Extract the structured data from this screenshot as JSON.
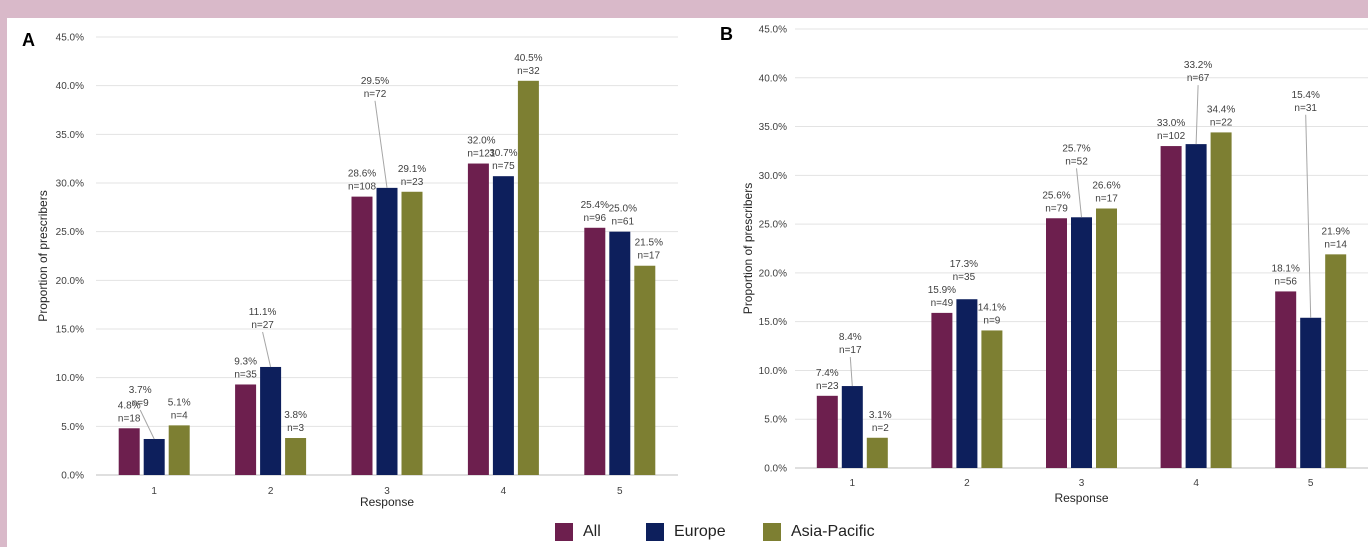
{
  "colors": {
    "All": "#6d1f4e",
    "Europe": "#0d1f5c",
    "Asia-Pacific": "#7d7f32"
  },
  "legend": {
    "all": "All",
    "europe": "Europe",
    "asia_pacific": "Asia-Pacific"
  },
  "chart_data": [
    {
      "type": "bar",
      "panel_label": "A",
      "xlabel": "Response",
      "ylabel": "Proportion of prescribers",
      "ylim": [
        0,
        45
      ],
      "yticks": [
        "0.0%",
        "5.0%",
        "10.0%",
        "15.0%",
        "20.0%",
        "25.0%",
        "30.0%",
        "35.0%",
        "40.0%",
        "45.0%"
      ],
      "grid": true,
      "categories": [
        "1",
        "2",
        "3",
        "4",
        "5"
      ],
      "series": [
        {
          "name": "All",
          "values": [
            4.8,
            9.3,
            28.6,
            32.0,
            25.4
          ],
          "labels": [
            "4.8%",
            "9.3%",
            "28.6%",
            "32.0%",
            "25.4%"
          ],
          "counts": [
            "n=18",
            "n=35",
            "n=108",
            "n=121",
            "n=96"
          ]
        },
        {
          "name": "Europe",
          "values": [
            3.7,
            11.1,
            29.5,
            30.7,
            25.0
          ],
          "labels": [
            "3.7%",
            "11.1%",
            "29.5%",
            "30.7%",
            "25.0%"
          ],
          "counts": [
            "n=9",
            "n=27",
            "n=72",
            "n=75",
            "n=61"
          ]
        },
        {
          "name": "Asia-Pacific",
          "values": [
            5.1,
            3.8,
            29.1,
            40.5,
            21.5
          ],
          "labels": [
            "5.1%",
            "3.8%",
            "29.1%",
            "40.5%",
            "21.5%"
          ],
          "counts": [
            "n=4",
            "n=3",
            "n=23",
            "n=32",
            "n=17"
          ]
        }
      ]
    },
    {
      "type": "bar",
      "panel_label": "B",
      "xlabel": "Response",
      "ylabel": "Proportion of prescribers",
      "ylim": [
        0,
        45
      ],
      "yticks": [
        "0.0%",
        "5.0%",
        "10.0%",
        "15.0%",
        "20.0%",
        "25.0%",
        "30.0%",
        "35.0%",
        "40.0%",
        "45.0%"
      ],
      "grid": true,
      "categories": [
        "1",
        "2",
        "3",
        "4",
        "5"
      ],
      "series": [
        {
          "name": "All",
          "values": [
            7.4,
            15.9,
            25.6,
            33.0,
            18.1
          ],
          "labels": [
            "7.4%",
            "15.9%",
            "25.6%",
            "33.0%",
            "18.1%"
          ],
          "counts": [
            "n=23",
            "n=49",
            "n=79",
            "n=102",
            "n=56"
          ]
        },
        {
          "name": "Europe",
          "values": [
            8.4,
            17.3,
            25.7,
            33.2,
            15.4
          ],
          "labels": [
            "8.4%",
            "17.3%",
            "25.7%",
            "33.2%",
            "15.4%"
          ],
          "counts": [
            "n=17",
            "n=35",
            "n=52",
            "n=67",
            "n=31"
          ]
        },
        {
          "name": "Asia-Pacific",
          "values": [
            3.1,
            14.1,
            26.6,
            34.4,
            21.9
          ],
          "labels": [
            "3.1%",
            "14.1%",
            "26.6%",
            "34.4%",
            "21.9%"
          ],
          "counts": [
            "n=2",
            "n=9",
            "n=17",
            "n=22",
            "n=14"
          ]
        }
      ]
    }
  ]
}
